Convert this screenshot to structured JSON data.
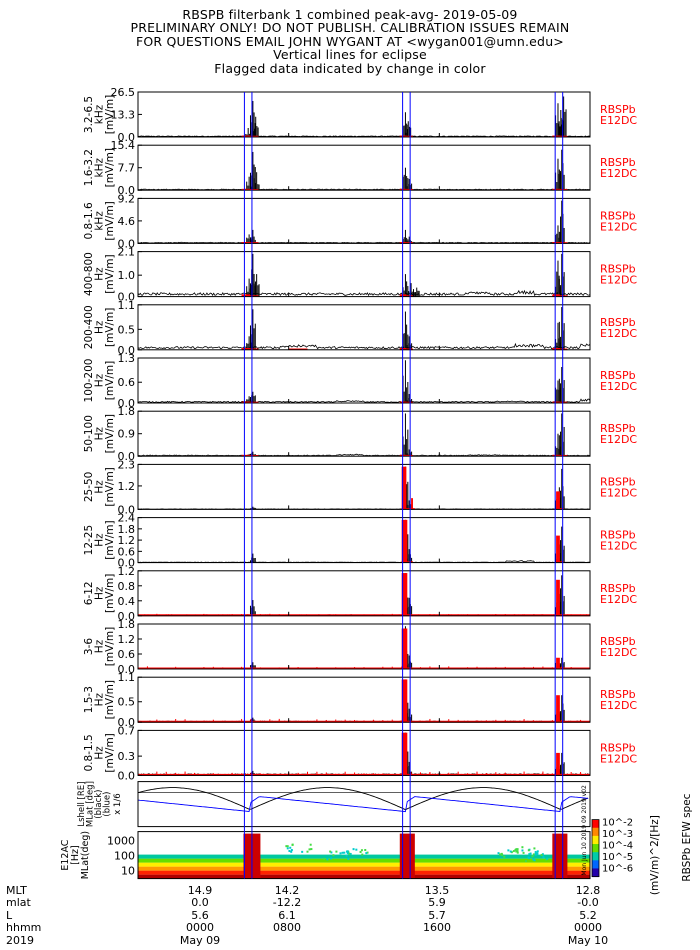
{
  "header": {
    "lines": [
      "RBSPB filterbank 1 combined peak-avg- 2019-05-09",
      "PRELIMINARY ONLY! DO NOT PUBLISH. CALIBRATION ISSUES REMAIN",
      "FOR QUESTIONS EMAIL JOHN WYGANT AT <wygan001@umn.edu>",
      "Vertical lines for eclipse",
      "Flagged data indicated by change in color"
    ]
  },
  "colors": {
    "trace": "#000000",
    "flagged": "#ff0000",
    "eclipse": "#0000ff",
    "side_label": "#ff0000",
    "orbit_L": "#0000ff",
    "orbit_other": "#000000"
  },
  "chart_data": {
    "type": "line",
    "x_axis": {
      "range_hours": [
        0,
        24
      ],
      "ticks_hours": [
        0,
        8,
        16,
        24
      ],
      "rows": [
        {
          "label": "MLT",
          "values": [
            "14.9",
            "14.2",
            "13.5",
            "12.8"
          ]
        },
        {
          "label": "mlat",
          "values": [
            "0.0",
            "-12.2",
            "5.9",
            "-0.0"
          ]
        },
        {
          "label": "L",
          "values": [
            "5.6",
            "6.1",
            "5.7",
            "5.2"
          ]
        },
        {
          "label": "hhmm",
          "values": [
            "0000",
            "0800",
            "1600",
            "0000"
          ]
        },
        {
          "label": "2019",
          "values": [
            "May 09",
            "",
            "",
            "May 10"
          ]
        }
      ]
    },
    "eclipse_hours": [
      5.65,
      6.05,
      14.05,
      14.45,
      22.15,
      22.55
    ],
    "panels": [
      {
        "band": "3.2-6.5",
        "unit": "kHz",
        "ylabel": "[mV/m]",
        "ticks": [
          "0.0",
          "13.3",
          "26.5"
        ],
        "ymax": 26.5,
        "side": [
          "RBSPb",
          "E12DC"
        ],
        "bg": 0.02,
        "bg_bumps": [],
        "spikes": [
          [
            5.85,
            0.2
          ],
          [
            6.1,
            0.8
          ],
          [
            6.25,
            0.45
          ],
          [
            14.2,
            0.55
          ],
          [
            14.35,
            0.35
          ],
          [
            22.3,
            0.75
          ],
          [
            22.45,
            0.6
          ],
          [
            22.6,
            0.9
          ]
        ],
        "flagged": [
          [
            5.5,
            6.4,
            0.03
          ],
          [
            13.9,
            14.6,
            0.03
          ],
          [
            22.0,
            22.8,
            0.03
          ]
        ]
      },
      {
        "band": "1.6-3.2",
        "unit": "kHz",
        "ylabel": "[mV/m]",
        "ticks": [
          "0.0",
          "7.7",
          "15.4"
        ],
        "ymax": 15.4,
        "side": [
          "RBSPb",
          "E12DC"
        ],
        "bg": 0.02,
        "bg_bumps": [],
        "spikes": [
          [
            5.9,
            0.3
          ],
          [
            6.1,
            0.85
          ],
          [
            6.3,
            0.4
          ],
          [
            14.2,
            0.5
          ],
          [
            14.4,
            0.25
          ],
          [
            22.3,
            0.7
          ],
          [
            22.5,
            0.9
          ]
        ],
        "flagged": [
          [
            5.5,
            6.4,
            0.03
          ],
          [
            13.9,
            14.6,
            0.03
          ],
          [
            22.0,
            22.8,
            0.03
          ]
        ]
      },
      {
        "band": "0.8-1.6",
        "unit": "kHz",
        "ylabel": "[mV/m]",
        "ticks": [
          "0.0",
          "4.6",
          "9.2"
        ],
        "ymax": 9.2,
        "side": [
          "RBSPb",
          "E12DC"
        ],
        "bg": 0.02,
        "bg_bumps": [],
        "spikes": [
          [
            5.9,
            0.2
          ],
          [
            6.1,
            0.3
          ],
          [
            14.2,
            0.3
          ],
          [
            14.4,
            0.15
          ],
          [
            22.3,
            0.4
          ],
          [
            22.5,
            0.95
          ]
        ],
        "flagged": [
          [
            5.5,
            6.4,
            0.03
          ],
          [
            13.9,
            14.6,
            0.03
          ],
          [
            22.0,
            22.8,
            0.03
          ]
        ]
      },
      {
        "band": "400-800",
        "unit": "Hz",
        "ylabel": "[mV/m]",
        "ticks": [
          "0.0",
          "1.0",
          "2.1"
        ],
        "ymax": 2.1,
        "side": [
          "RBSPb",
          "E12DC"
        ],
        "bg": 0.07,
        "bg_bumps": [
          [
            17.5,
            18.5,
            0.1
          ],
          [
            20.0,
            21.0,
            0.12
          ]
        ],
        "spikes": [
          [
            5.9,
            0.4
          ],
          [
            6.1,
            0.95
          ],
          [
            6.3,
            0.5
          ],
          [
            14.2,
            0.5
          ],
          [
            14.5,
            0.3
          ],
          [
            14.8,
            0.2
          ],
          [
            22.3,
            0.8
          ],
          [
            22.5,
            0.95
          ]
        ],
        "flagged": [
          [
            5.5,
            6.4,
            0.05
          ],
          [
            13.9,
            14.6,
            0.05
          ],
          [
            22.0,
            22.8,
            0.05
          ]
        ]
      },
      {
        "band": "200-400",
        "unit": "Hz",
        "ylabel": "[mV/m]",
        "ticks": [
          "0.0",
          "0.5",
          "1.1"
        ],
        "ymax": 1.1,
        "side": [
          "RBSPb",
          "E12DC"
        ],
        "bg": 0.06,
        "bg_bumps": [
          [
            7.5,
            9.5,
            0.1
          ],
          [
            20.0,
            21.5,
            0.12
          ],
          [
            23.5,
            24.0,
            0.12
          ]
        ],
        "spikes": [
          [
            5.9,
            0.3
          ],
          [
            6.1,
            0.9
          ],
          [
            14.2,
            0.85
          ],
          [
            14.4,
            0.3
          ],
          [
            22.3,
            0.6
          ],
          [
            22.5,
            0.95
          ]
        ],
        "flagged": [
          [
            5.5,
            6.4,
            0.04
          ],
          [
            8.0,
            9.0,
            0.02
          ],
          [
            13.9,
            14.6,
            0.04
          ],
          [
            22.0,
            22.8,
            0.04
          ]
        ]
      },
      {
        "band": "100-200",
        "unit": "Hz",
        "ylabel": "[mV/m]",
        "ticks": [
          "0.0",
          "0.6",
          "1.3"
        ],
        "ymax": 1.3,
        "side": [
          "RBSPb",
          "E12DC"
        ],
        "bg": 0.03,
        "bg_bumps": [
          [
            10.5,
            12.0,
            0.05
          ],
          [
            19.0,
            20.5,
            0.04
          ],
          [
            23.5,
            24.0,
            0.08
          ]
        ],
        "spikes": [
          [
            5.9,
            0.15
          ],
          [
            6.1,
            0.25
          ],
          [
            14.2,
            0.95
          ],
          [
            14.4,
            0.2
          ],
          [
            22.3,
            0.5
          ],
          [
            22.5,
            0.8
          ]
        ],
        "flagged": [
          [
            5.5,
            6.4,
            0.03
          ],
          [
            13.9,
            14.6,
            0.03
          ],
          [
            22.0,
            22.8,
            0.03
          ]
        ]
      },
      {
        "band": "50-100",
        "unit": "Hz",
        "ylabel": "[mV/m]",
        "ticks": [
          "0.0",
          "0.9",
          "1.8"
        ],
        "ymax": 1.8,
        "side": [
          "RBSPb",
          "E12DC"
        ],
        "bg": 0.02,
        "bg_bumps": [
          [
            10.5,
            12.0,
            0.04
          ],
          [
            17.5,
            19.5,
            0.03
          ]
        ],
        "spikes": [
          [
            5.9,
            0.05
          ],
          [
            6.1,
            0.1
          ],
          [
            14.2,
            0.95
          ],
          [
            14.4,
            0.15
          ],
          [
            22.3,
            0.5
          ],
          [
            22.5,
            0.95
          ]
        ],
        "flagged": [
          [
            5.5,
            6.4,
            0.03
          ],
          [
            13.9,
            14.6,
            0.03
          ],
          [
            22.0,
            22.8,
            0.03
          ]
        ]
      },
      {
        "band": "25-50",
        "unit": "Hz",
        "ylabel": "[mV/m]",
        "ticks": [
          "0.0",
          "1.2",
          "2.3"
        ],
        "ymax": 2.3,
        "side": [
          "RBSPb",
          "E12DC"
        ],
        "bg": 0.01,
        "bg_bumps": [],
        "spikes": [
          [
            6.1,
            0.06
          ],
          [
            14.2,
            0.95
          ],
          [
            14.4,
            0.2
          ],
          [
            22.3,
            0.4
          ],
          [
            22.5,
            0.9
          ]
        ],
        "flagged": [
          [
            14.0,
            14.5,
            0.95
          ],
          [
            14.5,
            14.7,
            0.25
          ],
          [
            22.2,
            22.6,
            0.4
          ]
        ]
      },
      {
        "band": "12-25",
        "unit": "Hz",
        "ylabel": "[mV/m]",
        "ticks": [
          "0.0",
          "0.6",
          "1.2",
          "1.8",
          "2.4"
        ],
        "ymax": 2.4,
        "side": [
          "RBSPb",
          "E12DC"
        ],
        "bg": 0.01,
        "bg_bumps": [
          [
            19.5,
            21.0,
            0.04
          ]
        ],
        "spikes": [
          [
            6.1,
            0.2
          ],
          [
            14.2,
            0.95
          ],
          [
            14.4,
            0.3
          ],
          [
            22.3,
            0.3
          ],
          [
            22.5,
            0.8
          ]
        ],
        "flagged": [
          [
            14.0,
            14.6,
            0.95
          ],
          [
            22.2,
            22.6,
            0.6
          ]
        ]
      },
      {
        "band": "6-12",
        "unit": "Hz",
        "ylabel": "[mV/m]",
        "ticks": [
          "0.0",
          "0.4",
          "0.8",
          "1.2"
        ],
        "ymax": 1.2,
        "side": [
          "RBSPb",
          "E12DC"
        ],
        "bg": 0.02,
        "bg_bumps": [],
        "spikes": [
          [
            6.1,
            0.35
          ],
          [
            14.2,
            0.95
          ],
          [
            14.4,
            0.4
          ],
          [
            22.3,
            0.5
          ],
          [
            22.5,
            0.9
          ]
        ],
        "flagged": [
          [
            0.0,
            24.0,
            0.03
          ],
          [
            14.0,
            14.6,
            0.95
          ],
          [
            22.2,
            22.6,
            0.8
          ]
        ]
      },
      {
        "band": "3-6",
        "unit": "Hz",
        "ylabel": "[mV/m]",
        "ticks": [
          "0.0",
          "0.6",
          "1.2",
          "1.8"
        ],
        "ymax": 1.8,
        "side": [
          "RBSPb",
          "E12DC"
        ],
        "bg": 0.02,
        "bg_bumps": [],
        "spikes": [
          [
            6.1,
            0.15
          ],
          [
            14.2,
            0.95
          ],
          [
            14.4,
            0.3
          ],
          [
            22.3,
            0.2
          ],
          [
            22.5,
            0.25
          ]
        ],
        "flagged": [
          [
            0.0,
            24.0,
            0.04
          ],
          [
            14.0,
            14.6,
            0.9
          ],
          [
            22.2,
            22.6,
            0.25
          ]
        ]
      },
      {
        "band": "1.5-3",
        "unit": "Hz",
        "ylabel": "[mV/m]",
        "ticks": [
          "0.0",
          "0.5",
          "1.1"
        ],
        "ymax": 1.1,
        "side": [
          "RBSPb",
          "E12DC"
        ],
        "bg": 0.02,
        "bg_bumps": [],
        "spikes": [
          [
            6.1,
            0.1
          ],
          [
            14.2,
            0.95
          ],
          [
            14.4,
            0.3
          ],
          [
            22.3,
            0.4
          ],
          [
            22.5,
            0.6
          ]
        ],
        "flagged": [
          [
            0.0,
            24.0,
            0.05
          ],
          [
            14.0,
            14.6,
            0.95
          ],
          [
            22.2,
            22.6,
            0.6
          ]
        ]
      },
      {
        "band": "0.8-1.5",
        "unit": "Hz",
        "ylabel": "[mV/m]",
        "ticks": [
          "0.0",
          "0.3",
          "0.7"
        ],
        "ymax": 0.7,
        "side": [
          "RBSPb",
          "E12DC"
        ],
        "bg": 0.03,
        "bg_bumps": [],
        "spikes": [
          [
            6.1,
            0.1
          ],
          [
            14.2,
            0.95
          ],
          [
            14.4,
            0.3
          ],
          [
            22.3,
            0.3
          ],
          [
            22.5,
            0.5
          ]
        ],
        "flagged": [
          [
            0.0,
            24.0,
            0.06
          ],
          [
            14.0,
            14.6,
            0.95
          ],
          [
            22.2,
            22.6,
            0.5
          ]
        ]
      }
    ],
    "orbit_panel": {
      "ylabel_lines": [
        "Lshell [RE]",
        "MLat [deg]",
        "(black)",
        "(blue)"
      ],
      "scale_note": "x 1/6"
    },
    "spec_panel": {
      "ylabel_lines": [
        "E12AC",
        "[Hz]",
        "MLat(deg)"
      ],
      "y_ticks": [
        "10",
        "100",
        "1000"
      ],
      "colorbar_ticks": [
        "10^-2",
        "10^-3",
        "10^-4",
        "10^-5",
        "10^-6"
      ],
      "colorbar_label": "(mV/m)^2/[Hz]",
      "side_label": "RBSPb EFW spec",
      "version_stamp": "Mon Jun 10 2019 09 2019 v02"
    }
  }
}
